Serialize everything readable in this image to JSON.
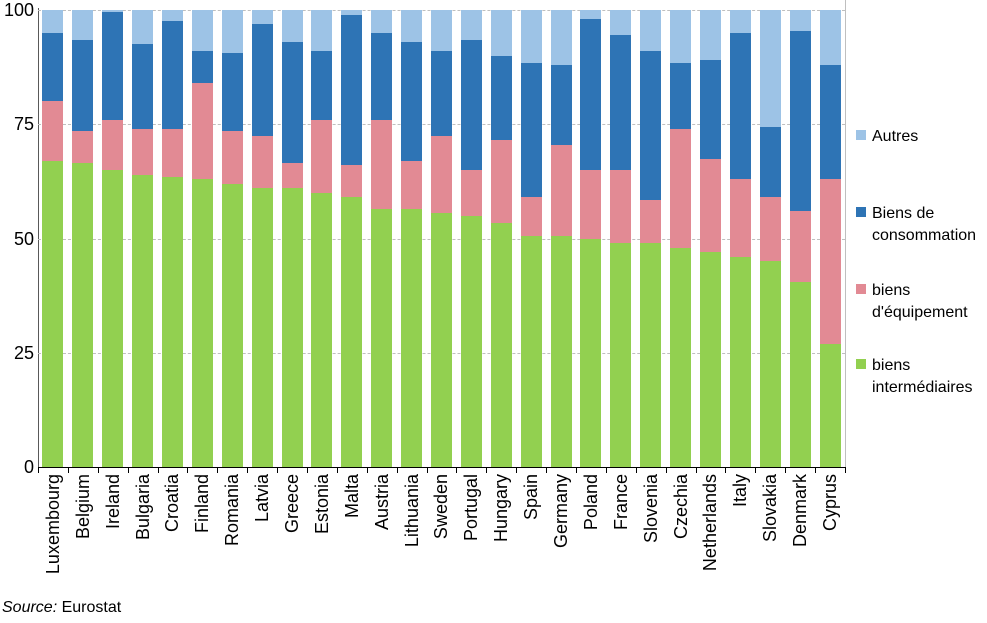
{
  "y_axis": {
    "ticks": [
      0,
      25,
      50,
      75,
      100
    ]
  },
  "legend": {
    "items": [
      {
        "label": "Autres",
        "series": "autres"
      },
      {
        "label": "Biens de consommation",
        "series": "biens_conso"
      },
      {
        "label": "biens d'équipement",
        "series": "biens_equip"
      },
      {
        "label": "biens intermédiaires",
        "series": "biens_inter"
      }
    ]
  },
  "source": {
    "prefix": "Source:",
    "text": "Eurostat"
  },
  "chart_data": {
    "type": "bar",
    "stacked": true,
    "title": "",
    "xlabel": "",
    "ylabel": "",
    "ylim": [
      0,
      100
    ],
    "grid": true,
    "legend_position": "right",
    "categories": [
      "Luxembourg",
      "Belgium",
      "Ireland",
      "Bulgaria",
      "Croatia",
      "Finland",
      "Romania",
      "Latvia",
      "Greece",
      "Estonia",
      "Malta",
      "Austria",
      "Lithuania",
      "Sweden",
      "Portugal",
      "Hungary",
      "Spain",
      "Germany",
      "Poland",
      "France",
      "Slovenia",
      "Czechia",
      "Netherlands",
      "Italy",
      "Slovakia",
      "Denmark",
      "Cyprus"
    ],
    "series": [
      {
        "id": "biens_inter",
        "name": "biens intermédiaires",
        "color": "#92D050",
        "values": [
          67,
          66.5,
          65,
          64,
          63.5,
          63,
          62,
          61,
          61,
          60,
          59,
          56.5,
          56.5,
          55.5,
          55,
          53.5,
          50.5,
          50.5,
          50,
          49,
          49,
          48,
          47,
          46,
          45,
          40.5,
          27
        ]
      },
      {
        "id": "biens_equip",
        "name": "biens d'équipement",
        "color": "#E28A94",
        "values": [
          13,
          7,
          11,
          10,
          10.5,
          21,
          11.5,
          11.5,
          5.5,
          16,
          7,
          19.5,
          10.5,
          17,
          10,
          18,
          8.5,
          20,
          15,
          16,
          9.5,
          26,
          20.5,
          17,
          14,
          15.5,
          36
        ]
      },
      {
        "id": "biens_conso",
        "name": "Biens de consommation",
        "color": "#2E74B5",
        "values": [
          15,
          20,
          23.5,
          18.5,
          23.5,
          7,
          17,
          24.5,
          26.5,
          15,
          33,
          19,
          26,
          18.5,
          28.5,
          18.5,
          29.5,
          17.5,
          33,
          29.5,
          32.5,
          14.5,
          21.5,
          32,
          15.5,
          39.5,
          25
        ]
      },
      {
        "id": "autres",
        "name": "Autres",
        "color": "#9DC3E6",
        "values": [
          5,
          6.5,
          0.5,
          7.5,
          2.5,
          9,
          9.5,
          3,
          7,
          9,
          1,
          5,
          7,
          9,
          6.5,
          10,
          11.5,
          12,
          2,
          5.5,
          9,
          11.5,
          11,
          5,
          25.5,
          4.5,
          12
        ]
      }
    ]
  }
}
